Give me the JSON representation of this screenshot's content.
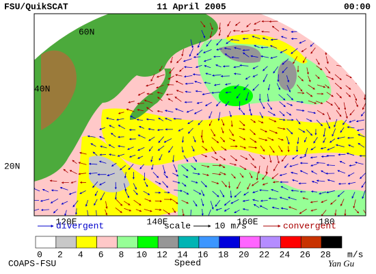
{
  "header": {
    "left": "FSU/QuikSCAT",
    "center": "11 April 2005",
    "right": "00:00"
  },
  "map": {
    "lat_labels": [
      "60N",
      "40N",
      "20N"
    ],
    "lon_labels": [
      "120E",
      "140E",
      "160E",
      "180"
    ]
  },
  "legend": {
    "divergent": "divergent",
    "scale": "scale",
    "scale_value": "10 m/s",
    "convergent": "convergent"
  },
  "colorbar": {
    "colors": [
      "#ffffff",
      "#c8c8c8",
      "#ffff00",
      "#ffc8c8",
      "#96ff96",
      "#00ff00",
      "#969696",
      "#00b4b4",
      "#3c96ff",
      "#0000dc",
      "#ff64ff",
      "#b48cff",
      "#ff0000",
      "#c83200",
      "#000000"
    ],
    "labels": [
      "0",
      "2",
      "4",
      "6",
      "8",
      "10",
      "12",
      "14",
      "16",
      "18",
      "20",
      "22",
      "24",
      "26",
      "28"
    ],
    "unit": "m/s",
    "title": "Speed"
  },
  "footer": {
    "left": "COAPS-FSU",
    "signature": "Yan Gu"
  }
}
